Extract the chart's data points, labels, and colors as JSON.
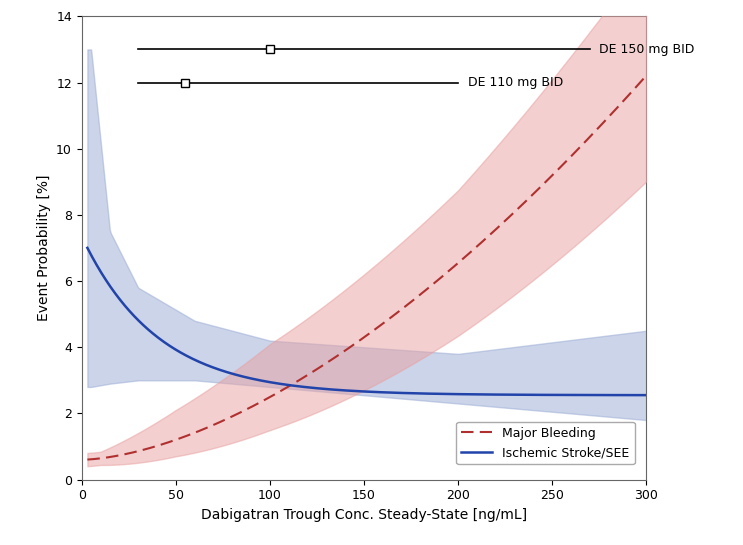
{
  "xlim": [
    0,
    300
  ],
  "ylim": [
    0,
    14
  ],
  "xlabel": "Dabigatran Trough Conc. Steady-State [ng/mL]",
  "ylabel": "Event Probability [%]",
  "yticks": [
    0,
    2,
    4,
    6,
    8,
    10,
    12,
    14
  ],
  "xticks": [
    0,
    50,
    100,
    150,
    200,
    250,
    300
  ],
  "bleeding_color": "#b03030",
  "bleeding_fill_color": "#e8a0a0",
  "stroke_color": "#2244aa",
  "stroke_fill_color": "#99aad4",
  "de150_y": 13.0,
  "de150_x_start": 30,
  "de150_x_end": 270,
  "de150_x_marker": 100,
  "de150_label": "DE 150 mg BID",
  "de110_y": 12.0,
  "de110_x_start": 30,
  "de110_x_end": 200,
  "de110_x_marker": 55,
  "de110_label": "DE 110 mg BID",
  "legend_bleeding": "Major Bleeding",
  "legend_stroke": "Ischemic Stroke/SEE",
  "background_color": "#ffffff",
  "figsize": [
    7.43,
    5.45
  ],
  "dpi": 100
}
